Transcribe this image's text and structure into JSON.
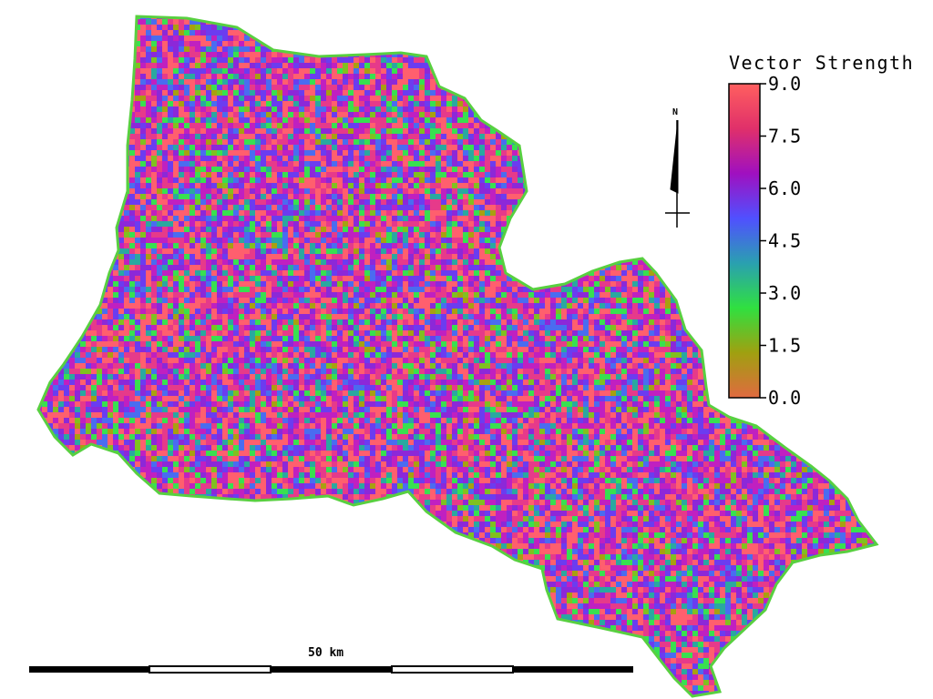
{
  "legend": {
    "title": "Vector Strength",
    "ticks": [
      "9.0",
      "7.5",
      "6.0",
      "4.5",
      "3.0",
      "1.5",
      "0.0"
    ],
    "min": 0.0,
    "max": 9.0,
    "gradient_colors": [
      "#ff5f5f",
      "#e0306a",
      "#a010c0",
      "#5050ff",
      "#2aa0b0",
      "#30e040",
      "#a0a010",
      "#e06a40"
    ]
  },
  "north_arrow": {
    "label": "N"
  },
  "scale_bar": {
    "label": "50 km",
    "length_km": 50
  },
  "map": {
    "palette": [
      "#ff5f6e",
      "#e63a8a",
      "#c020c0",
      "#8c28d8",
      "#6b3cf0",
      "#4a6cf0",
      "#2aa8a0",
      "#38e050",
      "#80c020",
      "#a8a010"
    ],
    "background": "#ffffff",
    "region_outline_color": "#58d040"
  }
}
